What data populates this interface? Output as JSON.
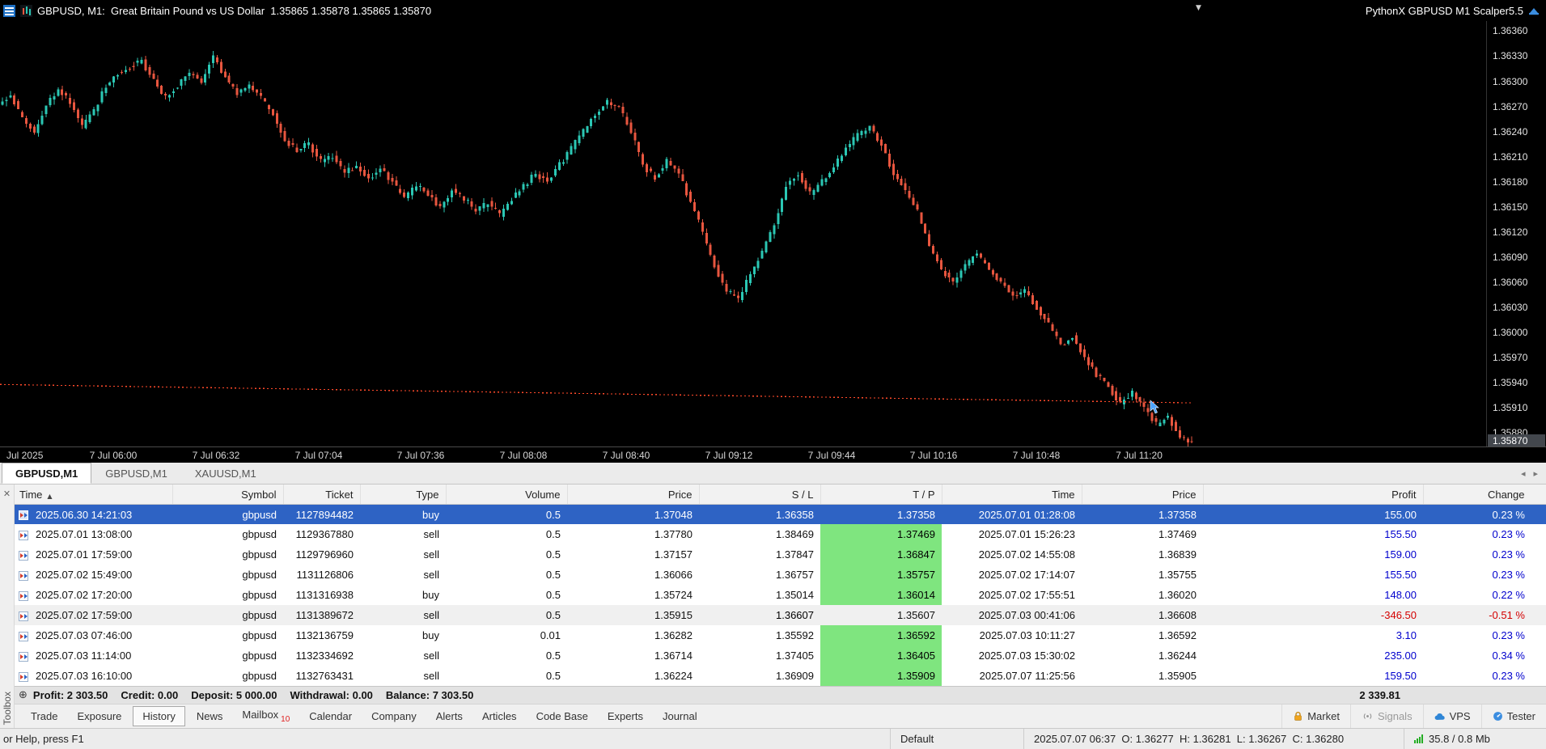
{
  "icons": {
    "chart_dropdown": "▼",
    "tab_scroll_left": "◂",
    "tab_scroll_right": "▸",
    "close": "✕",
    "sort_asc": "▲",
    "summary_plus": "⊕"
  },
  "title_bar": {
    "symbol_info": "GBPUSD, M1:  Great Britain Pound vs US Dollar  1.35865 1.35878 1.35865 1.35870",
    "ea_name": "PythonX GBPUSD M1 Scalper5.5"
  },
  "chart": {
    "price_axis_labels": [
      "1.36360",
      "1.36330",
      "1.36300",
      "1.36270",
      "1.36240",
      "1.36210",
      "1.36180",
      "1.36150",
      "1.36120",
      "1.36090",
      "1.36060",
      "1.36030",
      "1.36000",
      "1.35970",
      "1.35940",
      "1.35910",
      "1.35880"
    ],
    "current_price": "1.35870",
    "time_axis_labels": [
      "Jul 2025",
      "7 Jul 06:00",
      "7 Jul 06:32",
      "7 Jul 07:04",
      "7 Jul 07:36",
      "7 Jul 08:08",
      "7 Jul 08:40",
      "7 Jul 09:12",
      "7 Jul 09:44",
      "7 Jul 10:16",
      "7 Jul 10:48",
      "7 Jul 11:20"
    ]
  },
  "chart_data": {
    "type": "candlestick",
    "symbol": "GBPUSD",
    "timeframe": "M1",
    "ylim": [
      1.35862,
      1.36372
    ],
    "up_color": "#2bc7b4",
    "down_color": "#e8563f",
    "candles_per_anchor": 3,
    "price_path": [
      1.3627,
      1.36285,
      1.36255,
      1.3624,
      1.3627,
      1.3629,
      1.36275,
      1.36245,
      1.36265,
      1.36295,
      1.3631,
      1.36318,
      1.36325,
      1.363,
      1.3628,
      1.36295,
      1.3631,
      1.363,
      1.3633,
      1.36305,
      1.36285,
      1.36295,
      1.3628,
      1.3626,
      1.3623,
      1.36218,
      1.36225,
      1.36205,
      1.3621,
      1.3619,
      1.362,
      1.36185,
      1.36195,
      1.3618,
      1.3616,
      1.36175,
      1.36165,
      1.3615,
      1.3617,
      1.3616,
      1.36145,
      1.36155,
      1.3614,
      1.3616,
      1.36175,
      1.3619,
      1.3618,
      1.362,
      1.3622,
      1.3624,
      1.36262,
      1.36275,
      1.36268,
      1.3624,
      1.362,
      1.36185,
      1.36205,
      1.3619,
      1.36155,
      1.3612,
      1.3608,
      1.3605,
      1.3604,
      1.3607,
      1.36095,
      1.3613,
      1.36175,
      1.3619,
      1.36165,
      1.3618,
      1.362,
      1.3622,
      1.36235,
      1.36245,
      1.36225,
      1.3619,
      1.3617,
      1.36145,
      1.36105,
      1.36075,
      1.3606,
      1.3608,
      1.36095,
      1.36075,
      1.3606,
      1.36045,
      1.3605,
      1.3603,
      1.3601,
      1.35985,
      1.35995,
      1.3597,
      1.3595,
      1.35935,
      1.35915,
      1.3593,
      1.3591,
      1.3589,
      1.359,
      1.35875,
      1.3587
    ],
    "indicator_line": {
      "name": "trailing-dotted-line",
      "style": "dotted",
      "color": "#ff4a2a",
      "start_price": 1.35938,
      "end_price": 1.35916
    }
  },
  "chart_tabs": {
    "tabs": [
      {
        "label": "GBPUSD,M1",
        "active": true
      },
      {
        "label": "GBPUSD,M1",
        "active": false
      },
      {
        "label": "XAUUSD,M1",
        "active": false
      }
    ]
  },
  "toolbox": {
    "vertical_label": "Toolbox",
    "history": {
      "columns": [
        "Time",
        "Symbol",
        "Ticket",
        "Type",
        "Volume",
        "Price",
        "S / L",
        "T / P",
        "Time",
        "Price",
        "Profit",
        "Change"
      ],
      "sort_column": "Time",
      "rows": [
        {
          "time": "2025.06.30 14:21:03",
          "symbol": "gbpusd",
          "ticket": "1127894482",
          "type": "buy",
          "volume": "0.5",
          "price": "1.37048",
          "sl": "1.36358",
          "tp": "1.37358",
          "close_time": "2025.07.01 01:28:08",
          "close_price": "1.37358",
          "profit": "155.00",
          "change": "0.23 %",
          "selected": true,
          "sl_hit": false,
          "tp_hit": false,
          "shaded": false
        },
        {
          "time": "2025.07.01 13:08:00",
          "symbol": "gbpusd",
          "ticket": "1129367880",
          "type": "sell",
          "volume": "0.5",
          "price": "1.37780",
          "sl": "1.38469",
          "tp": "1.37469",
          "close_time": "2025.07.01 15:26:23",
          "close_price": "1.37469",
          "profit": "155.50",
          "change": "0.23 %",
          "selected": false,
          "sl_hit": false,
          "tp_hit": true,
          "shaded": false
        },
        {
          "time": "2025.07.01 17:59:00",
          "symbol": "gbpusd",
          "ticket": "1129796960",
          "type": "sell",
          "volume": "0.5",
          "price": "1.37157",
          "sl": "1.37847",
          "tp": "1.36847",
          "close_time": "2025.07.02 14:55:08",
          "close_price": "1.36839",
          "profit": "159.00",
          "change": "0.23 %",
          "selected": false,
          "sl_hit": false,
          "tp_hit": true,
          "shaded": false
        },
        {
          "time": "2025.07.02 15:49:00",
          "symbol": "gbpusd",
          "ticket": "1131126806",
          "type": "sell",
          "volume": "0.5",
          "price": "1.36066",
          "sl": "1.36757",
          "tp": "1.35757",
          "close_time": "2025.07.02 17:14:07",
          "close_price": "1.35755",
          "profit": "155.50",
          "change": "0.23 %",
          "selected": false,
          "sl_hit": false,
          "tp_hit": true,
          "shaded": false
        },
        {
          "time": "2025.07.02 17:20:00",
          "symbol": "gbpusd",
          "ticket": "1131316938",
          "type": "buy",
          "volume": "0.5",
          "price": "1.35724",
          "sl": "1.35014",
          "tp": "1.36014",
          "close_time": "2025.07.02 17:55:51",
          "close_price": "1.36020",
          "profit": "148.00",
          "change": "0.22 %",
          "selected": false,
          "sl_hit": false,
          "tp_hit": true,
          "shaded": false
        },
        {
          "time": "2025.07.02 17:59:00",
          "symbol": "gbpusd",
          "ticket": "1131389672",
          "type": "sell",
          "volume": "0.5",
          "price": "1.35915",
          "sl": "1.36607",
          "tp": "1.35607",
          "close_time": "2025.07.03 00:41:06",
          "close_price": "1.36608",
          "profit": "-346.50",
          "change": "-0.51 %",
          "selected": false,
          "sl_hit": true,
          "tp_hit": false,
          "shaded": true
        },
        {
          "time": "2025.07.03 07:46:00",
          "symbol": "gbpusd",
          "ticket": "1132136759",
          "type": "buy",
          "volume": "0.01",
          "price": "1.36282",
          "sl": "1.35592",
          "tp": "1.36592",
          "close_time": "2025.07.03 10:11:27",
          "close_price": "1.36592",
          "profit": "3.10",
          "change": "0.23 %",
          "selected": false,
          "sl_hit": false,
          "tp_hit": true,
          "shaded": false
        },
        {
          "time": "2025.07.03 11:14:00",
          "symbol": "gbpusd",
          "ticket": "1132334692",
          "type": "sell",
          "volume": "0.5",
          "price": "1.36714",
          "sl": "1.37405",
          "tp": "1.36405",
          "close_time": "2025.07.03 15:30:02",
          "close_price": "1.36244",
          "profit": "235.00",
          "change": "0.34 %",
          "selected": false,
          "sl_hit": false,
          "tp_hit": true,
          "shaded": false
        },
        {
          "time": "2025.07.03 16:10:00",
          "symbol": "gbpusd",
          "ticket": "1132763431",
          "type": "sell",
          "volume": "0.5",
          "price": "1.36224",
          "sl": "1.36909",
          "tp": "1.35909",
          "close_time": "2025.07.07 11:25:56",
          "close_price": "1.35905",
          "profit": "159.50",
          "change": "0.23 %",
          "selected": false,
          "sl_hit": false,
          "tp_hit": true,
          "shaded": false
        }
      ]
    },
    "summary": {
      "items": [
        "Profit: 2 303.50",
        "Credit: 0.00",
        "Deposit: 5 000.00",
        "Withdrawal: 0.00",
        "Balance: 7 303.50"
      ],
      "total": "2 339.81"
    },
    "tabs": [
      "Trade",
      "Exposure",
      "History",
      "News",
      "Mailbox",
      "Calendar",
      "Company",
      "Alerts",
      "Articles",
      "Code Base",
      "Experts",
      "Journal"
    ],
    "active_tab": "History",
    "mailbox_badge": "10",
    "right_buttons": [
      "Market",
      "Signals",
      "VPS",
      "Tester"
    ]
  },
  "status_bar": {
    "help": "or Help, press F1",
    "profile": "Default",
    "candle_info": "2025.07.07 06:37  O: 1.36277  H: 1.36281  L: 1.36267  C: 1.36280",
    "traffic": "35.8 / 0.8 Mb"
  }
}
